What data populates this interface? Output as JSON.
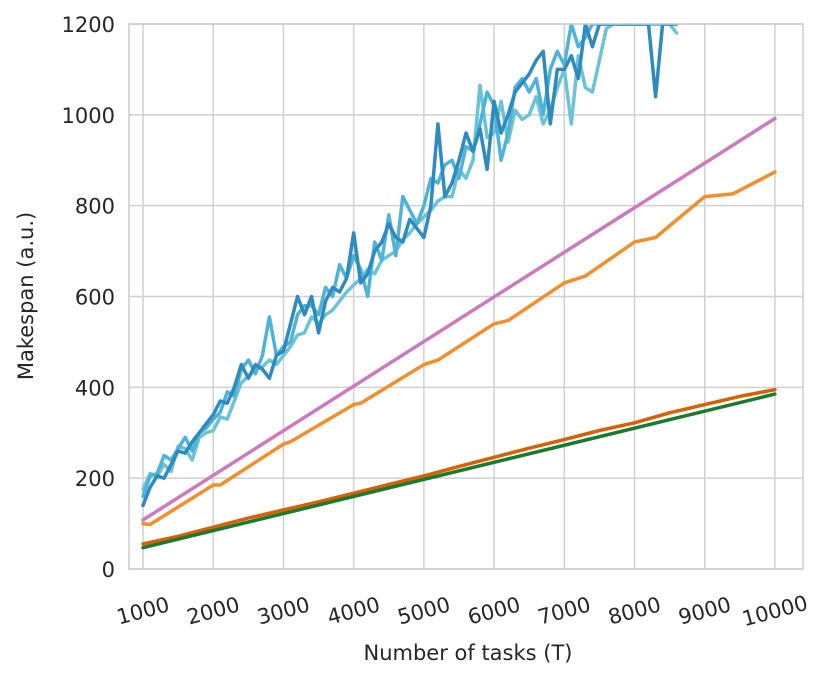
{
  "chart_data": {
    "type": "line",
    "xlabel": "Number of tasks (T)",
    "ylabel": "Makespan (a.u.)",
    "xlim": [
      800,
      10400
    ],
    "ylim": [
      0,
      1200
    ],
    "x_ticks": [
      1000,
      2000,
      3000,
      4000,
      5000,
      6000,
      7000,
      8000,
      9000,
      10000
    ],
    "y_ticks": [
      0,
      200,
      400,
      600,
      800,
      1000,
      1200
    ],
    "grid": true,
    "legend": "none",
    "series": [
      {
        "color": "#6cc3d5",
        "clip": true,
        "x": [
          1000,
          1100,
          1200,
          1300,
          1400,
          1500,
          1600,
          1700,
          1800,
          1900,
          2000,
          2100,
          2200,
          2300,
          2400,
          2500,
          2600,
          2700,
          2800,
          2900,
          3000,
          3100,
          3200,
          3300,
          3400,
          3500,
          3600,
          3700,
          3800,
          3900,
          4000,
          4100,
          4200,
          4300,
          4400,
          4500,
          4600,
          4700,
          4800,
          4900,
          5000,
          5100,
          5200,
          5300,
          5400,
          5500,
          5600,
          5700,
          5800,
          5900,
          6000,
          6100,
          6200,
          6300,
          6400,
          6500,
          6600,
          6700,
          6800,
          6900,
          7000,
          7100,
          7200,
          7300,
          7400,
          7500,
          7600,
          7700,
          7800,
          7900,
          8000,
          8100,
          8200,
          8300,
          8400,
          8500,
          8600
        ],
        "values": [
          175,
          210,
          205,
          230,
          215,
          270,
          265,
          240,
          290,
          300,
          305,
          335,
          330,
          370,
          410,
          425,
          440,
          445,
          460,
          450,
          470,
          490,
          515,
          520,
          555,
          540,
          560,
          570,
          590,
          610,
          625,
          640,
          660,
          650,
          680,
          690,
          700,
          725,
          740,
          760,
          775,
          790,
          810,
          820,
          820,
          880,
          860,
          900,
          1065,
          950,
          960,
          1030,
          940,
          1010,
          990,
          1000,
          1040,
          980,
          1010,
          1060,
          1100,
          980,
          1130,
          1060,
          1050,
          1120,
          1190,
          1200,
          1210,
          1205,
          1200,
          1200,
          1200,
          1200,
          1200,
          1200,
          1180
        ]
      },
      {
        "color": "#4fb3d9",
        "clip": true,
        "x": [
          1000,
          1100,
          1200,
          1300,
          1400,
          1500,
          1600,
          1700,
          1800,
          1900,
          2000,
          2100,
          2200,
          2300,
          2400,
          2500,
          2600,
          2700,
          2800,
          2900,
          3000,
          3100,
          3200,
          3300,
          3400,
          3500,
          3600,
          3700,
          3800,
          3900,
          4000,
          4100,
          4200,
          4300,
          4400,
          4500,
          4600,
          4700,
          4800,
          4900,
          5000,
          5100,
          5200,
          5300,
          5400,
          5500,
          5600,
          5700,
          5800,
          5900,
          6000,
          6100,
          6200,
          6300,
          6400,
          6500,
          6600,
          6700,
          6800,
          6900,
          7000,
          7100,
          7200,
          7300,
          7400,
          7500,
          7600,
          7700,
          7800,
          7900,
          8000,
          8100,
          8200,
          8300,
          8400,
          8500,
          8600
        ],
        "values": [
          160,
          205,
          210,
          250,
          240,
          265,
          290,
          260,
          300,
          310,
          330,
          345,
          390,
          380,
          440,
          460,
          430,
          470,
          555,
          470,
          490,
          500,
          560,
          580,
          580,
          560,
          620,
          600,
          670,
          640,
          690,
          660,
          600,
          720,
          680,
          780,
          690,
          820,
          790,
          760,
          800,
          860,
          850,
          890,
          900,
          860,
          930,
          920,
          980,
          1050,
          1020,
          900,
          960,
          1060,
          1080,
          1050,
          1080,
          1000,
          1100,
          1140,
          1110,
          1200,
          1150,
          1170,
          1200,
          1200,
          1200,
          1200,
          1200,
          1200,
          1200,
          1200,
          1200,
          1200,
          1200,
          1200,
          1200
        ]
      },
      {
        "color": "#2e8bc0",
        "clip": true,
        "x": [
          1000,
          1100,
          1200,
          1300,
          1400,
          1500,
          1600,
          1700,
          1800,
          1900,
          2000,
          2100,
          2200,
          2300,
          2400,
          2500,
          2600,
          2700,
          2800,
          2900,
          3000,
          3100,
          3200,
          3300,
          3400,
          3500,
          3600,
          3700,
          3800,
          3900,
          4000,
          4100,
          4200,
          4300,
          4400,
          4500,
          4600,
          4700,
          4800,
          4900,
          5000,
          5100,
          5200,
          5300,
          5400,
          5500,
          5600,
          5700,
          5800,
          5900,
          6000,
          6100,
          6200,
          6300,
          6400,
          6500,
          6600,
          6700,
          6800,
          6900,
          7000,
          7100,
          7200,
          7300,
          7400,
          7500,
          7600,
          7700,
          7800,
          7900,
          8000,
          8100,
          8200,
          8300,
          8400,
          8500,
          8600
        ],
        "values": [
          140,
          180,
          205,
          200,
          230,
          260,
          255,
          280,
          300,
          320,
          340,
          370,
          365,
          400,
          450,
          420,
          450,
          440,
          420,
          470,
          480,
          540,
          600,
          560,
          600,
          520,
          590,
          620,
          610,
          640,
          740,
          630,
          650,
          700,
          720,
          760,
          730,
          720,
          770,
          750,
          730,
          800,
          980,
          820,
          850,
          900,
          960,
          920,
          970,
          880,
          1030,
          960,
          1000,
          1050,
          1070,
          1090,
          1120,
          1140,
          980,
          1100,
          1100,
          1130,
          1080,
          1200,
          1150,
          1200,
          1200,
          1200,
          1200,
          1200,
          1200,
          1200,
          1200,
          1040,
          1200,
          1200,
          1200
        ]
      },
      {
        "color": "#cc79c0",
        "x": [
          1000,
          10000
        ],
        "values": [
          108,
          992
        ]
      },
      {
        "color": "#f28e2b",
        "x": [
          1000,
          1100,
          2000,
          2100,
          3000,
          3100,
          4000,
          4100,
          5000,
          5200,
          6000,
          6200,
          7000,
          7300,
          8000,
          8300,
          9000,
          9400,
          10000
        ],
        "values": [
          100,
          98,
          185,
          185,
          275,
          280,
          362,
          365,
          450,
          460,
          540,
          547,
          630,
          645,
          720,
          730,
          820,
          826,
          874
        ]
      },
      {
        "color": "#d95f02",
        "x": [
          1000,
          1500,
          2000,
          2500,
          3000,
          3500,
          4000,
          4500,
          5000,
          5500,
          6000,
          6500,
          7000,
          7500,
          8000,
          8500,
          9000,
          9500,
          10000
        ],
        "values": [
          55,
          72,
          92,
          112,
          130,
          148,
          167,
          186,
          205,
          226,
          246,
          266,
          285,
          305,
          322,
          344,
          362,
          380,
          395
        ]
      },
      {
        "color": "#1a7a2e",
        "x": [
          1000,
          10000
        ],
        "values": [
          47,
          385
        ]
      }
    ]
  }
}
